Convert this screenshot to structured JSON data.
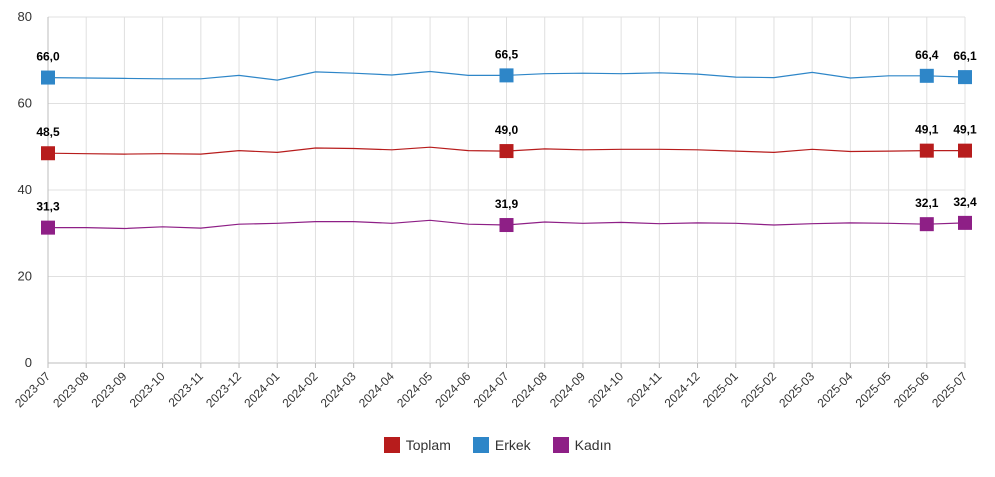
{
  "chart_data": {
    "type": "line",
    "title": "",
    "xlabel": "",
    "ylabel": "",
    "ylim": [
      0,
      80
    ],
    "yticks": [
      "0",
      "20",
      "40",
      "60",
      "80"
    ],
    "grid": true,
    "legend_position": "bottom-center",
    "categories": [
      "2023-07",
      "2023-08",
      "2023-09",
      "2023-10",
      "2023-11",
      "2023-12",
      "2024-01",
      "2024-02",
      "2024-03",
      "2024-04",
      "2024-05",
      "2024-06",
      "2024-07",
      "2024-08",
      "2024-09",
      "2024-10",
      "2024-11",
      "2024-12",
      "2025-01",
      "2025-02",
      "2025-03",
      "2025-04",
      "2025-05",
      "2025-06",
      "2025-07"
    ],
    "series": [
      {
        "name": "Toplam",
        "color": "#b71c1c",
        "values": [
          48.5,
          48.4,
          48.3,
          48.4,
          48.3,
          49.1,
          48.7,
          49.7,
          49.6,
          49.3,
          49.9,
          49.1,
          49.0,
          49.5,
          49.3,
          49.4,
          49.4,
          49.3,
          49.0,
          48.7,
          49.4,
          48.9,
          49.0,
          49.1,
          49.1
        ],
        "labels": [
          {
            "index": 0,
            "text": "48,5"
          },
          {
            "index": 12,
            "text": "49,0"
          },
          {
            "index": 23,
            "text": "49,1"
          },
          {
            "index": 24,
            "text": "49,1"
          }
        ]
      },
      {
        "name": "Erkek",
        "color": "#2e86c8",
        "values": [
          66.0,
          65.9,
          65.8,
          65.7,
          65.7,
          66.5,
          65.4,
          67.3,
          67.0,
          66.6,
          67.4,
          66.5,
          66.5,
          66.9,
          67.0,
          66.9,
          67.1,
          66.8,
          66.1,
          66.0,
          67.2,
          65.9,
          66.4,
          66.4,
          66.1
        ],
        "labels": [
          {
            "index": 0,
            "text": "66,0"
          },
          {
            "index": 12,
            "text": "66,5"
          },
          {
            "index": 23,
            "text": "66,4"
          },
          {
            "index": 24,
            "text": "66,1"
          }
        ]
      },
      {
        "name": "Kadın",
        "color": "#8e1f86",
        "values": [
          31.3,
          31.3,
          31.1,
          31.5,
          31.2,
          32.1,
          32.3,
          32.7,
          32.7,
          32.3,
          33.0,
          32.1,
          31.9,
          32.6,
          32.3,
          32.5,
          32.2,
          32.4,
          32.3,
          31.9,
          32.2,
          32.4,
          32.3,
          32.1,
          32.4
        ],
        "labels": [
          {
            "index": 0,
            "text": "31,3"
          },
          {
            "index": 12,
            "text": "31,9"
          },
          {
            "index": 23,
            "text": "32,1"
          },
          {
            "index": 24,
            "text": "32,4"
          }
        ]
      }
    ]
  }
}
